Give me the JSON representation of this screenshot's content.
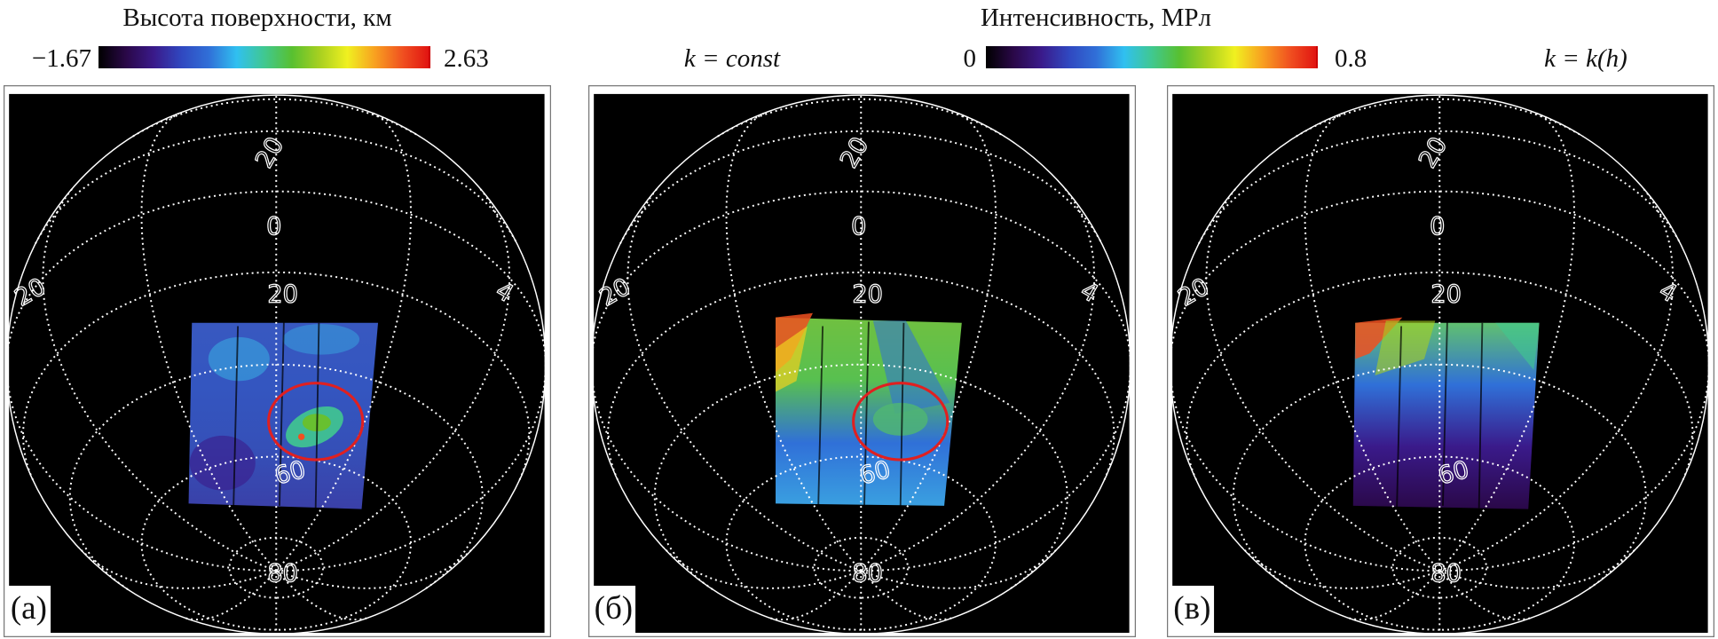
{
  "colorbar_height": {
    "title": "Высота поверхности, км",
    "min": {
      "value": -1.67,
      "label": "−1.67"
    },
    "max": 2.63
  },
  "colorbar_intensity": {
    "title": "Интенсивность, МРл",
    "min": 0,
    "max": 0.8
  },
  "panels": [
    {
      "label": "(а)"
    },
    {
      "label": "(б)",
      "caption": "k = const"
    },
    {
      "label": "(в)",
      "caption": "k = k(h)"
    }
  ],
  "grid_labels": [
    "20",
    "0",
    "20",
    "20",
    "4",
    "60",
    "80"
  ]
}
